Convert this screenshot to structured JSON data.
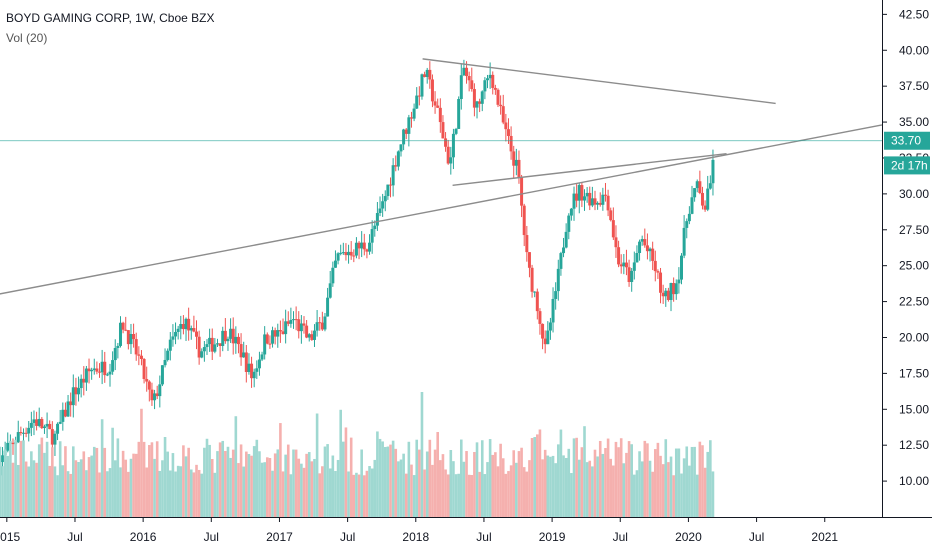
{
  "legend": {
    "title": "BOYD GAMING CORP, 1W, Cboe BZX",
    "volume": "Vol (20)"
  },
  "price_badge": {
    "label": "33.70",
    "value": 33.7,
    "color": "#26a69a"
  },
  "timer_badge": {
    "label": "2d 17h",
    "value": 32.4,
    "color": "#26a69a"
  },
  "colors": {
    "up": "#26a69a",
    "down": "#ef5350",
    "vol_up": "#9fd8d1",
    "vol_down": "#f5b0ae",
    "trend": "#8c8c8c"
  },
  "chart_data": {
    "type": "candlestick",
    "ylim": [
      7.5,
      43.5
    ],
    "y_ticks": [
      10.0,
      12.5,
      15.0,
      17.5,
      20.0,
      22.5,
      25.0,
      27.5,
      30.0,
      32.5,
      35.0,
      37.5,
      40.0,
      42.5
    ],
    "y_tick_labels": [
      "10.00",
      "12.50",
      "15.00",
      "17.50",
      "20.00",
      "22.50",
      "25.00",
      "27.50",
      "30.00",
      "32.50",
      "35.00",
      "37.50",
      "40.00",
      "42.50"
    ],
    "x_ticks": [
      {
        "label": "2015",
        "t": 2015.0
      },
      {
        "label": "Jul",
        "t": 2015.5
      },
      {
        "label": "2016",
        "t": 2016.0
      },
      {
        "label": "Jul",
        "t": 2016.5
      },
      {
        "label": "2017",
        "t": 2017.0
      },
      {
        "label": "Jul",
        "t": 2017.5
      },
      {
        "label": "2018",
        "t": 2018.0
      },
      {
        "label": "Jul",
        "t": 2018.5
      },
      {
        "label": "2019",
        "t": 2019.0
      },
      {
        "label": "Jul",
        "t": 2019.5
      },
      {
        "label": "2020",
        "t": 2020.0
      },
      {
        "label": "Jul",
        "t": 2020.5
      },
      {
        "label": "2021",
        "t": 2021.0
      }
    ],
    "xlim": [
      2014.95,
      2021.42
    ],
    "price_path": [
      [
        2014.93,
        11.0
      ],
      [
        2015.05,
        12.8
      ],
      [
        2015.2,
        14.3
      ],
      [
        2015.35,
        13.0
      ],
      [
        2015.48,
        16.0
      ],
      [
        2015.62,
        17.8
      ],
      [
        2015.75,
        18.0
      ],
      [
        2015.85,
        21.0
      ],
      [
        2015.97,
        18.5
      ],
      [
        2016.07,
        15.2
      ],
      [
        2016.2,
        19.5
      ],
      [
        2016.3,
        21.2
      ],
      [
        2016.42,
        19.0
      ],
      [
        2016.55,
        19.8
      ],
      [
        2016.62,
        20.5
      ],
      [
        2016.72,
        19.0
      ],
      [
        2016.8,
        17.2
      ],
      [
        2016.9,
        20.0
      ],
      [
        2017.0,
        20.2
      ],
      [
        2017.1,
        21.3
      ],
      [
        2017.22,
        19.8
      ],
      [
        2017.32,
        21.2
      ],
      [
        2017.42,
        25.5
      ],
      [
        2017.5,
        26.0
      ],
      [
        2017.65,
        26.5
      ],
      [
        2017.75,
        29.0
      ],
      [
        2017.87,
        33.0
      ],
      [
        2018.0,
        36.5
      ],
      [
        2018.07,
        38.5
      ],
      [
        2018.15,
        36.0
      ],
      [
        2018.25,
        32.0
      ],
      [
        2018.35,
        38.8
      ],
      [
        2018.45,
        36.0
      ],
      [
        2018.55,
        38.5
      ],
      [
        2018.65,
        34.5
      ],
      [
        2018.75,
        31.5
      ],
      [
        2018.82,
        25.0
      ],
      [
        2018.9,
        22.0
      ],
      [
        2018.95,
        19.0
      ],
      [
        2019.05,
        24.5
      ],
      [
        2019.12,
        29.0
      ],
      [
        2019.2,
        30.2
      ],
      [
        2019.32,
        29.5
      ],
      [
        2019.4,
        30.0
      ],
      [
        2019.48,
        25.5
      ],
      [
        2019.58,
        24.0
      ],
      [
        2019.65,
        27.0
      ],
      [
        2019.75,
        25.0
      ],
      [
        2019.82,
        22.5
      ],
      [
        2019.92,
        24.0
      ],
      [
        2020.0,
        29.0
      ],
      [
        2020.06,
        30.5
      ],
      [
        2020.12,
        29.0
      ],
      [
        2020.16,
        30.5
      ],
      [
        2020.19,
        33.7
      ]
    ],
    "volume_max": 16.5,
    "trendlines": [
      {
        "from": [
          2014.93,
          23.0
        ],
        "to": [
          2021.42,
          34.8
        ]
      },
      {
        "from": [
          2018.05,
          39.4
        ],
        "to": [
          2020.64,
          36.3
        ]
      },
      {
        "from": [
          2018.27,
          30.6
        ],
        "to": [
          2020.28,
          32.8
        ]
      }
    ],
    "hline": 33.7
  }
}
